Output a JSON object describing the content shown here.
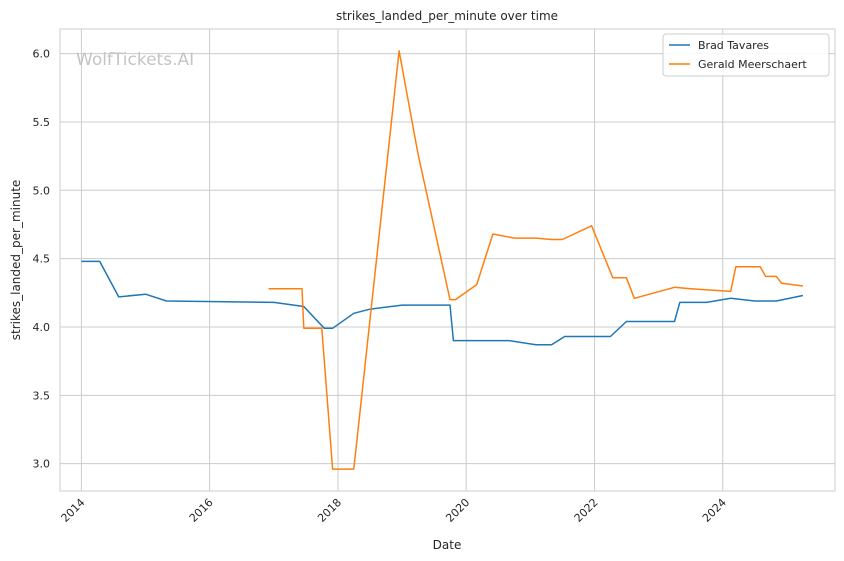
{
  "chart_data": {
    "type": "line",
    "title": "strikes_landed_per_minute over time",
    "xlabel": "Date",
    "ylabel": "strikes_landed_per_minute",
    "xlim": [
      "2013-09-01",
      "2025-10-01"
    ],
    "ylim": [
      2.8,
      6.18
    ],
    "x_ticks": [
      "2014",
      "2016",
      "2018",
      "2020",
      "2022",
      "2024"
    ],
    "y_ticks": [
      "3.0",
      "3.5",
      "4.0",
      "4.5",
      "5.0",
      "5.5",
      "6.0"
    ],
    "grid": true,
    "legend_position": "top-right",
    "watermark": "WolfTickets.AI",
    "series": [
      {
        "name": "Brad Tavares",
        "color": "#1f77b4",
        "points": [
          [
            "2014-01-01",
            4.48
          ],
          [
            "2014-04-15",
            4.48
          ],
          [
            "2014-08-01",
            4.22
          ],
          [
            "2015-01-01",
            4.24
          ],
          [
            "2015-05-01",
            4.19
          ],
          [
            "2017-01-01",
            4.18
          ],
          [
            "2017-06-20",
            4.15
          ],
          [
            "2017-10-15",
            3.99
          ],
          [
            "2017-12-01",
            3.99
          ],
          [
            "2018-04-01",
            4.1
          ],
          [
            "2018-07-01",
            4.13
          ],
          [
            "2019-01-01",
            4.16
          ],
          [
            "2019-10-01",
            4.16
          ],
          [
            "2019-10-20",
            3.9
          ],
          [
            "2020-09-01",
            3.9
          ],
          [
            "2021-02-01",
            3.87
          ],
          [
            "2021-05-01",
            3.87
          ],
          [
            "2021-07-15",
            3.93
          ],
          [
            "2022-04-01",
            3.93
          ],
          [
            "2022-07-01",
            4.04
          ],
          [
            "2023-04-01",
            4.04
          ],
          [
            "2023-05-01",
            4.18
          ],
          [
            "2023-10-01",
            4.18
          ],
          [
            "2024-02-15",
            4.21
          ],
          [
            "2024-07-01",
            4.19
          ],
          [
            "2024-11-01",
            4.19
          ],
          [
            "2025-04-01",
            4.23
          ]
        ]
      },
      {
        "name": "Gerald Meerschaert",
        "color": "#ff7f0e",
        "points": [
          [
            "2016-12-01",
            4.28
          ],
          [
            "2017-06-10",
            4.28
          ],
          [
            "2017-06-20",
            3.99
          ],
          [
            "2017-10-01",
            3.99
          ],
          [
            "2017-12-01",
            2.96
          ],
          [
            "2018-04-01",
            2.96
          ],
          [
            "2018-12-15",
            6.02
          ],
          [
            "2019-04-01",
            5.27
          ],
          [
            "2019-10-01",
            4.2
          ],
          [
            "2019-11-01",
            4.2
          ],
          [
            "2020-03-01",
            4.31
          ],
          [
            "2020-06-01",
            4.68
          ],
          [
            "2020-10-01",
            4.65
          ],
          [
            "2021-02-01",
            4.65
          ],
          [
            "2021-05-01",
            4.64
          ],
          [
            "2021-07-01",
            4.64
          ],
          [
            "2021-12-15",
            4.74
          ],
          [
            "2022-04-15",
            4.36
          ],
          [
            "2022-07-01",
            4.36
          ],
          [
            "2022-08-15",
            4.21
          ],
          [
            "2023-04-01",
            4.29
          ],
          [
            "2023-07-01",
            4.28
          ],
          [
            "2024-02-15",
            4.26
          ],
          [
            "2024-03-15",
            4.44
          ],
          [
            "2024-08-01",
            4.44
          ],
          [
            "2024-09-01",
            4.37
          ],
          [
            "2024-11-01",
            4.37
          ],
          [
            "2024-12-01",
            4.32
          ],
          [
            "2025-04-01",
            4.3
          ]
        ]
      }
    ]
  }
}
